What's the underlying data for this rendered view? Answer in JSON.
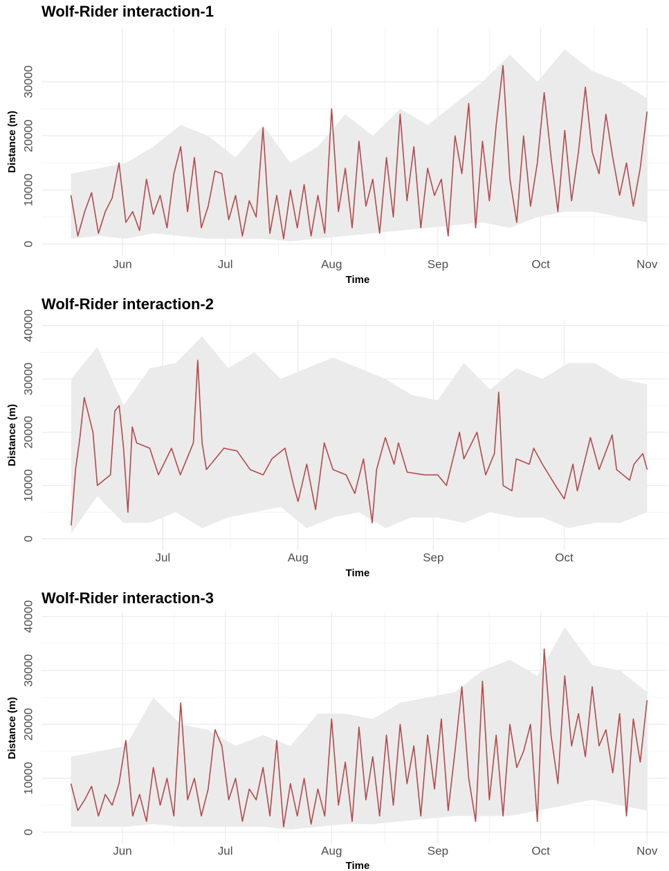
{
  "chart_data": [
    {
      "type": "line",
      "title": "Wolf-Rider interaction-1",
      "xlabel": "Time",
      "ylabel": "Distance (m)",
      "color": "#b5484b",
      "grid": true,
      "x": [
        16,
        18,
        20,
        22,
        24,
        26,
        28,
        30,
        32,
        34,
        36,
        38,
        40,
        42,
        44,
        46,
        48,
        50,
        52,
        54,
        56,
        58,
        60,
        62,
        64,
        66,
        68,
        70,
        72,
        74,
        76,
        78,
        80,
        82,
        84,
        86,
        88,
        90,
        92,
        94,
        96,
        98,
        100,
        102,
        104,
        106,
        108,
        110,
        112,
        114,
        116,
        118,
        120,
        122,
        124,
        126,
        128,
        130,
        132,
        134,
        136,
        138,
        140,
        142,
        144,
        146,
        148,
        150,
        152,
        154,
        156,
        158,
        160,
        162,
        164,
        166,
        168,
        170,
        172,
        174,
        176,
        178,
        180,
        182,
        184
      ],
      "values": [
        9000,
        1500,
        6000,
        9500,
        2000,
        6000,
        8500,
        15000,
        4000,
        6000,
        2500,
        12000,
        5500,
        9000,
        3000,
        13000,
        18000,
        6000,
        16000,
        3000,
        7000,
        13500,
        13000,
        4500,
        9000,
        1500,
        8000,
        5000,
        21500,
        2000,
        9000,
        1000,
        10000,
        3000,
        11000,
        1500,
        9000,
        2000,
        25000,
        6000,
        14000,
        3000,
        19000,
        7000,
        12000,
        2000,
        16000,
        5000,
        24000,
        8000,
        18000,
        3000,
        14000,
        9000,
        12000,
        1500,
        20000,
        13000,
        26000,
        3000,
        19000,
        8000,
        22000,
        33000,
        12000,
        4000,
        20000,
        7000,
        15000,
        28000,
        16000,
        6000,
        21000,
        8000,
        17000,
        29000,
        17000,
        13000,
        24000,
        16000,
        9000,
        15000,
        7000,
        14000,
        24500
      ],
      "band": {
        "color": "#ebebeb",
        "x": [
          16,
          24,
          32,
          40,
          48,
          56,
          64,
          72,
          80,
          88,
          96,
          104,
          112,
          120,
          128,
          136,
          144,
          152,
          160,
          168,
          176,
          184
        ],
        "lower": [
          1000,
          1500,
          1000,
          2000,
          1500,
          1000,
          1000,
          1000,
          500,
          1000,
          1500,
          2000,
          2500,
          3000,
          3500,
          4000,
          3000,
          5000,
          6000,
          6000,
          5000,
          4000
        ],
        "upper": [
          13000,
          14000,
          15000,
          18000,
          22000,
          20000,
          16000,
          22000,
          15000,
          18000,
          24000,
          20000,
          25000,
          22000,
          26000,
          30000,
          35000,
          30000,
          36000,
          32000,
          30000,
          27000
        ]
      },
      "xlim": [
        7.4,
        190
      ],
      "ylim": [
        -2200,
        40000
      ],
      "xticks": [
        {
          "value": 31,
          "label": "Jun"
        },
        {
          "value": 61,
          "label": "Jul"
        },
        {
          "value": 92,
          "label": "Aug"
        },
        {
          "value": 123,
          "label": "Sep"
        },
        {
          "value": 153,
          "label": "Oct"
        },
        {
          "value": 184,
          "label": "Nov"
        }
      ],
      "yticks": [
        0,
        10000,
        20000,
        30000
      ]
    },
    {
      "type": "line",
      "title": "Wolf-Rider interaction-2",
      "xlabel": "Time",
      "ylabel": "Distance (m)",
      "color": "#b5484b",
      "grid": true,
      "x": [
        40,
        41,
        42,
        43,
        45,
        46,
        49,
        50,
        51,
        52,
        53,
        54,
        55,
        58,
        60,
        63,
        65,
        68,
        69,
        70,
        71,
        75,
        78,
        81,
        84,
        86,
        89,
        91,
        92,
        94,
        96,
        98,
        100,
        103,
        105,
        107,
        109,
        110,
        112,
        114,
        115,
        117,
        121,
        124,
        126,
        129,
        130,
        133,
        135,
        137,
        138,
        139,
        141,
        142,
        145,
        146,
        148,
        151,
        153,
        155,
        156,
        159,
        161,
        164,
        165,
        168,
        169,
        171,
        172
      ],
      "values": [
        2500,
        13000,
        19000,
        26500,
        20000,
        10000,
        12000,
        24000,
        25000,
        17000,
        5000,
        21000,
        18000,
        17000,
        12000,
        17000,
        12000,
        18000,
        33500,
        18000,
        13000,
        17000,
        16500,
        13000,
        12000,
        15000,
        17000,
        10000,
        7000,
        14000,
        5500,
        18000,
        13000,
        12000,
        8500,
        15000,
        3000,
        13000,
        19000,
        14000,
        18000,
        12500,
        12000,
        12000,
        10000,
        20000,
        15000,
        20000,
        12000,
        16000,
        27500,
        10000,
        9000,
        15000,
        14000,
        17000,
        14000,
        10000,
        7500,
        14000,
        9000,
        19000,
        13000,
        19500,
        13000,
        11000,
        14000,
        16000,
        13000
      ],
      "band": {
        "color": "#ebebeb",
        "x": [
          40,
          46,
          52,
          58,
          64,
          70,
          76,
          82,
          88,
          94,
          100,
          106,
          112,
          118,
          124,
          130,
          136,
          142,
          148,
          154,
          160,
          166,
          172
        ],
        "lower": [
          1000,
          8000,
          3000,
          3000,
          5000,
          2000,
          4000,
          5000,
          6000,
          2000,
          4000,
          5000,
          2000,
          4000,
          4000,
          3000,
          5000,
          4000,
          4000,
          2000,
          3000,
          3000,
          5000
        ],
        "upper": [
          30000,
          36000,
          25000,
          32000,
          33000,
          38000,
          32000,
          35000,
          30000,
          32000,
          34000,
          32000,
          30000,
          27000,
          26000,
          33000,
          28000,
          32000,
          30000,
          33000,
          33000,
          30000,
          29000
        ]
      },
      "xlim": [
        33.2,
        176.7
      ],
      "ylim": [
        -2100,
        41000
      ],
      "xticks": [
        {
          "value": 61,
          "label": "Jul"
        },
        {
          "value": 92,
          "label": "Aug"
        },
        {
          "value": 123,
          "label": "Sep"
        },
        {
          "value": 153,
          "label": "Oct"
        }
      ],
      "yticks": [
        0,
        10000,
        20000,
        30000,
        40000
      ]
    },
    {
      "type": "line",
      "title": "Wolf-Rider interaction-3",
      "xlabel": "Time",
      "ylabel": "Distance (m)",
      "color": "#b5484b",
      "grid": true,
      "x": [
        16,
        18,
        20,
        22,
        24,
        26,
        28,
        30,
        32,
        34,
        36,
        38,
        40,
        42,
        44,
        46,
        48,
        50,
        52,
        54,
        56,
        58,
        60,
        62,
        64,
        66,
        68,
        70,
        72,
        74,
        76,
        78,
        80,
        82,
        84,
        86,
        88,
        90,
        92,
        94,
        96,
        98,
        100,
        102,
        104,
        106,
        108,
        110,
        112,
        114,
        116,
        118,
        120,
        122,
        124,
        126,
        128,
        130,
        132,
        134,
        136,
        138,
        140,
        142,
        144,
        146,
        148,
        150,
        152,
        154,
        156,
        158,
        160,
        162,
        164,
        166,
        168,
        170,
        172,
        174,
        176,
        178,
        180,
        182,
        184
      ],
      "values": [
        9000,
        4000,
        6000,
        8500,
        3000,
        7000,
        5000,
        9000,
        17000,
        3000,
        7000,
        2000,
        12000,
        5000,
        10000,
        3000,
        24000,
        6000,
        10000,
        3000,
        8000,
        19000,
        16000,
        6000,
        10000,
        2000,
        8000,
        6000,
        12000,
        3000,
        17000,
        1000,
        9000,
        3000,
        10000,
        1500,
        8000,
        3000,
        21000,
        5000,
        13000,
        2000,
        19500,
        6000,
        14000,
        3000,
        18000,
        5000,
        20000,
        9000,
        16000,
        3000,
        18000,
        8000,
        21000,
        4000,
        15000,
        27000,
        10000,
        2000,
        28000,
        6000,
        18000,
        3000,
        20000,
        12000,
        15000,
        20000,
        2000,
        34000,
        18000,
        9000,
        29000,
        16000,
        22000,
        14000,
        27000,
        16000,
        19000,
        11000,
        22000,
        3000,
        21000,
        13000,
        24500
      ],
      "band": {
        "color": "#ebebeb",
        "x": [
          16,
          24,
          32,
          40,
          48,
          56,
          64,
          72,
          80,
          88,
          96,
          104,
          112,
          120,
          128,
          136,
          144,
          152,
          160,
          168,
          176,
          184
        ],
        "lower": [
          1000,
          1000,
          1000,
          1500,
          1000,
          1000,
          1000,
          1000,
          500,
          1000,
          1500,
          1500,
          2000,
          2500,
          3000,
          3000,
          3000,
          4000,
          5000,
          6000,
          5000,
          4000
        ],
        "upper": [
          14000,
          15000,
          16000,
          25000,
          20000,
          19000,
          16000,
          18000,
          16000,
          22000,
          22000,
          21000,
          24000,
          25000,
          26000,
          30000,
          32000,
          29000,
          38000,
          31000,
          30000,
          26000
        ]
      },
      "xlim": [
        7.4,
        190
      ],
      "ylim": [
        -2200,
        40800
      ],
      "xticks": [
        {
          "value": 31,
          "label": "Jun"
        },
        {
          "value": 61,
          "label": "Jul"
        },
        {
          "value": 92,
          "label": "Aug"
        },
        {
          "value": 123,
          "label": "Sep"
        },
        {
          "value": 153,
          "label": "Oct"
        },
        {
          "value": 184,
          "label": "Nov"
        }
      ],
      "yticks": [
        0,
        10000,
        20000,
        30000,
        40000
      ]
    }
  ]
}
